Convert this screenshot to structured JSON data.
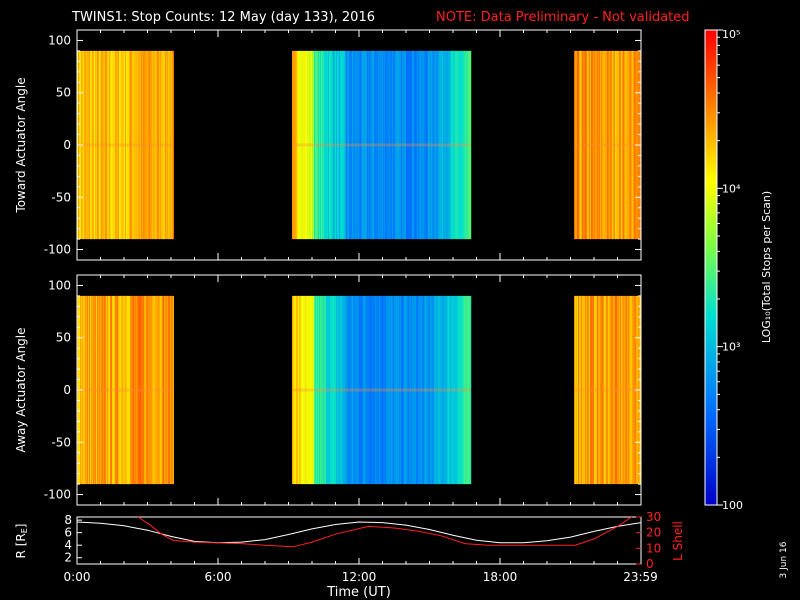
{
  "header": {
    "title": "TWINS1: Stop Counts: 12 May (day 133), 2016",
    "note": "NOTE: Data Preliminary - Not validated"
  },
  "colors": {
    "background": "#000000",
    "foreground": "#ffffff",
    "note": "#ff2020",
    "r_line": "#ffffff",
    "lshell_line": "#ff2020"
  },
  "colorbar": {
    "label": "LOG₁₀(Total Stops per Scan)",
    "scale": "log",
    "range": [
      100,
      100000
    ],
    "ticks": [
      {
        "value": 100000,
        "label": "10⁵"
      },
      {
        "value": 10000,
        "label": "10⁴"
      },
      {
        "value": 1000,
        "label": "10³"
      },
      {
        "value": 100,
        "label": "100"
      }
    ],
    "colormap": "rainbow"
  },
  "footer": {
    "date_stamp": "3 Jun 16"
  },
  "chart_data": [
    {
      "type": "heatmap",
      "name": "toward",
      "ylabel": "Toward Actuator Angle",
      "xlim": [
        0,
        24
      ],
      "ylim": [
        -110,
        110
      ],
      "data_ylim": [
        -90,
        90
      ],
      "yticks": [
        100,
        50,
        0,
        -50,
        -100
      ],
      "ytick_labels": [
        "100",
        "50",
        "0",
        "-50",
        "-100"
      ],
      "value_scale": "log10 counts",
      "segments": [
        {
          "start": "0:00",
          "end": "4:05",
          "x": [
            0.0,
            4.1
          ],
          "log_counts": 4.3,
          "profile": "left"
        },
        {
          "start": "9:10",
          "end": "16:45",
          "x": [
            9.15,
            16.75
          ],
          "log_counts": 2.9,
          "profile": "middle"
        },
        {
          "start": "21:10",
          "end": "23:59",
          "x": [
            21.15,
            23.98
          ],
          "log_counts": 4.4,
          "profile": "right"
        }
      ]
    },
    {
      "type": "heatmap",
      "name": "away",
      "ylabel": "Away Actuator Angle",
      "xlim": [
        0,
        24
      ],
      "ylim": [
        -110,
        110
      ],
      "data_ylim": [
        -90,
        90
      ],
      "yticks": [
        100,
        50,
        0,
        -50,
        -100
      ],
      "ytick_labels": [
        "100",
        "50",
        "0",
        "-50",
        "-100"
      ],
      "value_scale": "log10 counts",
      "segments": [
        {
          "start": "0:00",
          "end": "4:05",
          "x": [
            0.0,
            4.1
          ],
          "log_counts": 4.4,
          "profile": "left"
        },
        {
          "start": "9:10",
          "end": "16:45",
          "x": [
            9.15,
            16.75
          ],
          "log_counts": 2.9,
          "profile": "middle"
        },
        {
          "start": "21:10",
          "end": "23:59",
          "x": [
            21.15,
            23.98
          ],
          "log_counts": 4.4,
          "profile": "right"
        }
      ]
    },
    {
      "type": "line",
      "name": "orbit",
      "xlabel": "Time (UT)",
      "xlim": [
        0,
        24
      ],
      "xticks": [
        0,
        6,
        12,
        18,
        23.98
      ],
      "xtick_labels": [
        "0:00",
        "6:00",
        "12:00",
        "18:00",
        "23:59"
      ],
      "ylabel_left": "R [RE]",
      "ylabel_left_base": "R [R",
      "ylabel_left_sub": "E",
      "ylabel_left_end": "]",
      "ylim_left": [
        1,
        8.5
      ],
      "yticks_left": [
        "8",
        "6",
        "4",
        "2"
      ],
      "ylabel_right": "L Shell",
      "ylim_right": [
        0,
        30
      ],
      "yticks_right": [
        "30",
        "20",
        "10",
        "0"
      ],
      "series": [
        {
          "axis": "left",
          "x": [
            0,
            1,
            2,
            3,
            4,
            5,
            6,
            7,
            8,
            9,
            10,
            11,
            12,
            13,
            14,
            15,
            16,
            17,
            18,
            19,
            20,
            21,
            22,
            23,
            24
          ],
          "y": [
            7.7,
            7.5,
            7.1,
            6.4,
            5.4,
            4.6,
            4.4,
            4.5,
            4.9,
            5.7,
            6.6,
            7.3,
            7.7,
            7.6,
            7.2,
            6.5,
            5.6,
            4.8,
            4.4,
            4.4,
            4.7,
            5.3,
            6.2,
            7.0,
            7.6
          ]
        },
        {
          "axis": "right",
          "x": [
            2.6,
            3.1,
            3.6,
            4.1,
            5.0,
            6.0,
            7.0,
            8.0,
            9.2,
            10.0,
            11.0,
            12.4,
            13.5,
            14.5,
            15.5,
            16.5,
            17.5,
            18.5,
            19.5,
            20.5,
            21.2,
            22.0,
            23.0,
            23.6
          ],
          "y": [
            30,
            25,
            19,
            15,
            14,
            13.5,
            13,
            12,
            11,
            14,
            19,
            24,
            23,
            21,
            18,
            13,
            12,
            12,
            12,
            12,
            12,
            16,
            24,
            30
          ]
        }
      ]
    }
  ]
}
